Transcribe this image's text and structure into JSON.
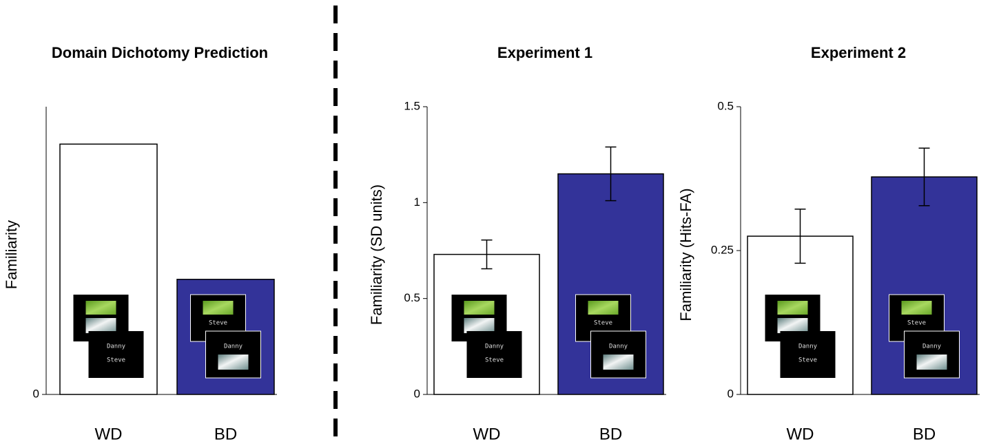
{
  "chart_data": [
    {
      "type": "bar",
      "title": "Domain Dichotomy Prediction",
      "ylabel": "Familiarity",
      "categories": [
        "WD",
        "BD"
      ],
      "values": [
        0.87,
        0.4
      ],
      "colors": [
        "#ffffff",
        "#333399"
      ],
      "ylim": [
        0,
        1
      ],
      "yticks": [
        0
      ]
    },
    {
      "type": "bar",
      "title": "Experiment 1",
      "ylabel": "Familiarity (SD units)",
      "categories": [
        "WD",
        "BD"
      ],
      "values": [
        0.73,
        1.15
      ],
      "errors": [
        0.075,
        0.14
      ],
      "colors": [
        "#ffffff",
        "#333399"
      ],
      "ylim": [
        0,
        1.5
      ],
      "yticks": [
        0,
        0.5,
        1,
        1.5
      ]
    },
    {
      "type": "bar",
      "title": "Experiment 2",
      "ylabel": "Familiarity (Hits-FA)",
      "categories": [
        "WD",
        "BD"
      ],
      "values": [
        0.275,
        0.378
      ],
      "errors": [
        0.047,
        0.05
      ],
      "colors": [
        "#ffffff",
        "#333399"
      ],
      "ylim": [
        0,
        0.5
      ],
      "yticks": [
        0,
        0.25,
        0.5
      ]
    }
  ],
  "stimulus_names": [
    "Danny",
    "Steve"
  ]
}
